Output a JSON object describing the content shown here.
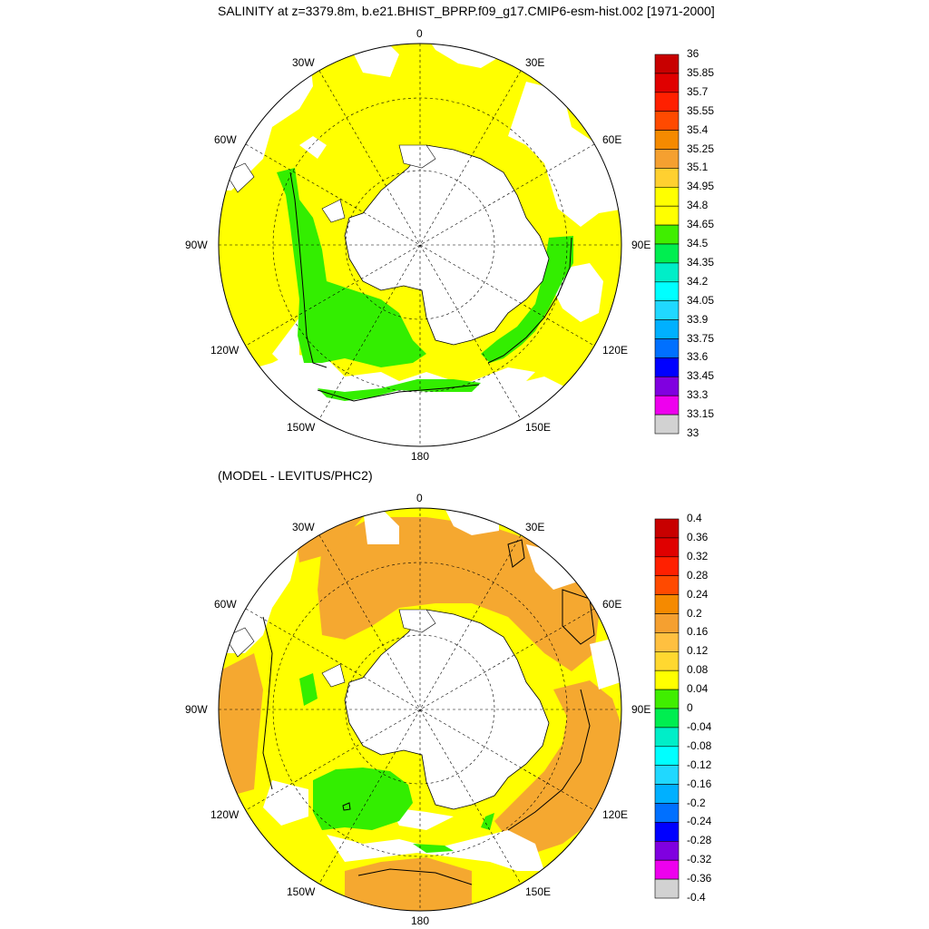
{
  "titles": {
    "top": "SALINITY at z=3379.8m, b.e21.BHIST_BPRP.f09_g17.CMIP6-esm-hist.002 [1971-2000]",
    "bottom": "(MODEL - LEVITUS/PHC2)"
  },
  "lon_labels": {
    "l0": "0",
    "l30e": "30E",
    "l60e": "60E",
    "l90e": "90E",
    "l120e": "120E",
    "l150e": "150E",
    "l180": "180",
    "l150w": "150W",
    "l120w": "120W",
    "l90w": "90W",
    "l60w": "60W",
    "l30w": "30W"
  },
  "colors": {
    "yellow": "#ffff00",
    "green": "#33ee00",
    "orange": "#f5a830",
    "contour": "#000000"
  },
  "colorbar_top": {
    "labels": [
      "36",
      "35.85",
      "35.7",
      "35.55",
      "35.4",
      "35.25",
      "35.1",
      "34.95",
      "34.8",
      "34.65",
      "34.5",
      "34.35",
      "34.2",
      "34.05",
      "33.9",
      "33.75",
      "33.6",
      "33.45",
      "33.3",
      "33.15",
      "33"
    ],
    "colors": [
      "#c80000",
      "#e00000",
      "#ff2000",
      "#ff4a00",
      "#f58a00",
      "#f5a030",
      "#ffd030",
      "#ffff00",
      "#ffff00",
      "#40ee00",
      "#00ee50",
      "#00eec8",
      "#00ffff",
      "#20d8ff",
      "#00b0ff",
      "#0070ff",
      "#0000ff",
      "#8000e0",
      "#ee00ee",
      "#d2d2d2",
      "#707070"
    ]
  },
  "colorbar_bottom": {
    "labels": [
      "0.4",
      "0.36",
      "0.32",
      "0.28",
      "0.24",
      "0.2",
      "0.16",
      "0.12",
      "0.08",
      "0.04",
      "0",
      "-0.04",
      "-0.08",
      "-0.12",
      "-0.16",
      "-0.2",
      "-0.24",
      "-0.28",
      "-0.32",
      "-0.36",
      "-0.4"
    ],
    "colors": [
      "#c80000",
      "#e00000",
      "#ff2000",
      "#ff4a00",
      "#f58a00",
      "#f5a030",
      "#ffc040",
      "#ffd830",
      "#ffff00",
      "#40ee00",
      "#00ee50",
      "#00eec8",
      "#00ffff",
      "#20d8ff",
      "#00b0ff",
      "#0070ff",
      "#0000ff",
      "#8000e0",
      "#ee00ee",
      "#d2d2d2",
      "#707070"
    ]
  }
}
